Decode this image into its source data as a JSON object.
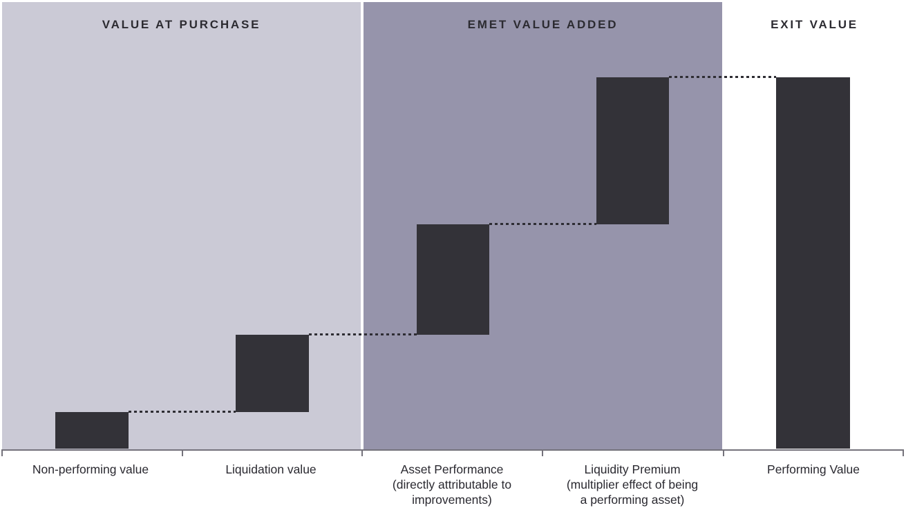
{
  "sections": [
    {
      "label": "VALUE AT PURCHASE"
    },
    {
      "label": "EMET VALUE ADDED"
    },
    {
      "label": "EXIT VALUE"
    }
  ],
  "categories": [
    {
      "lines": [
        "Non-performing value",
        "",
        ""
      ]
    },
    {
      "lines": [
        "Liquidation value",
        "",
        ""
      ]
    },
    {
      "lines": [
        "Asset Performance",
        "(directly attributable to",
        "improvements)"
      ]
    },
    {
      "lines": [
        "Liquidity Premium",
        "(multiplier effect of being",
        "a performing asset)"
      ]
    },
    {
      "lines": [
        "Performing Value",
        "",
        ""
      ]
    }
  ],
  "colors": {
    "bar": "#333238",
    "section_value_at_purchase_bg": "#cbcad6",
    "section_emet_value_added_bg": "#9694ab",
    "section_exit_value_bg": "#ffffff",
    "axis": "#74727b",
    "header_text": "#2c2b31",
    "label_text": "#2a2930",
    "connector": "#2e2d33"
  },
  "chart_data": {
    "type": "bar",
    "subtype": "waterfall",
    "title": "",
    "xlabel": "",
    "ylabel": "",
    "ylim": [
      0,
      100
    ],
    "grid": false,
    "axis_value_labels_shown": false,
    "note": "No numeric axis or data labels are shown; values are relative, estimated from bar pixel heights on an implied 0-100 scale.",
    "section_groups": [
      {
        "label": "VALUE AT PURCHASE",
        "categories": [
          "Non-performing value",
          "Liquidation value"
        ]
      },
      {
        "label": "EMET VALUE ADDED",
        "categories": [
          "Asset Performance (directly attributable to improvements)",
          "Liquidity Premium (multiplier effect of being a performing asset)"
        ]
      },
      {
        "label": "EXIT VALUE",
        "categories": [
          "Performing Value"
        ]
      }
    ],
    "categories": [
      "Non-performing value",
      "Liquidation value",
      "Asset Performance (directly attributable to improvements)",
      "Liquidity Premium (multiplier effect of being a performing asset)",
      "Performing Value"
    ],
    "segments": [
      {
        "label": "Non-performing value",
        "start": 0,
        "end": 10,
        "delta": 10,
        "kind": "base"
      },
      {
        "label": "Liquidation value",
        "start": 10,
        "end": 31,
        "delta": 21,
        "kind": "increase"
      },
      {
        "label": "Asset Performance (directly attributable to improvements)",
        "start": 31,
        "end": 61,
        "delta": 30,
        "kind": "increase"
      },
      {
        "label": "Liquidity Premium (multiplier effect of being a performing asset)",
        "start": 61,
        "end": 100,
        "delta": 39,
        "kind": "increase"
      },
      {
        "label": "Performing Value",
        "start": 0,
        "end": 100,
        "delta": 100,
        "kind": "total"
      }
    ],
    "connectors": [
      {
        "from": "Non-performing value",
        "to": "Liquidation value",
        "level": 10,
        "style": "dotted"
      },
      {
        "from": "Liquidation value",
        "to": "Asset Performance",
        "level": 31,
        "style": "dotted"
      },
      {
        "from": "Asset Performance",
        "to": "Liquidity Premium",
        "level": 61,
        "style": "dotted"
      },
      {
        "from": "Liquidity Premium",
        "to": "Performing Value",
        "level": 100,
        "style": "dotted"
      }
    ]
  }
}
